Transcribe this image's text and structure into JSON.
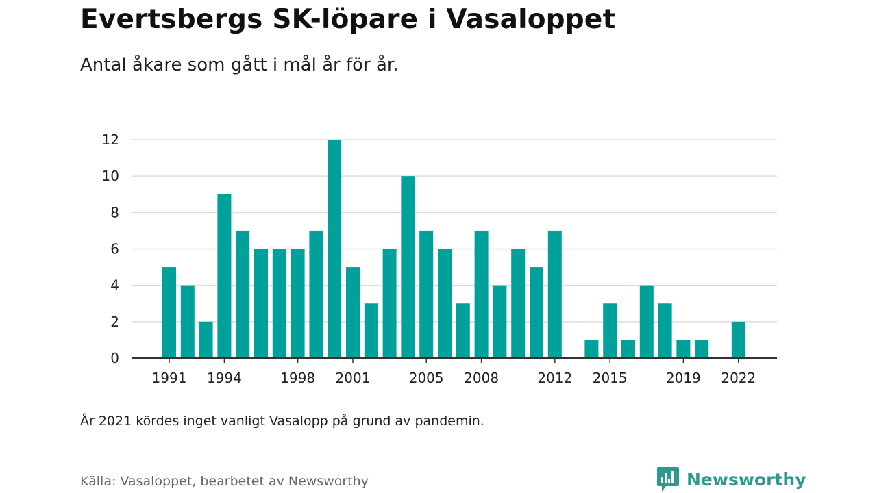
{
  "title": "Evertsbergs SK-löpare i Vasaloppet",
  "subtitle": "Antal åkare som gått i mål år för år.",
  "note": "År 2021 kördes inget vanligt Vasalopp på grund av pandemin.",
  "source": "Källa: Vasaloppet, bearbetet av Newsworthy",
  "brand": {
    "name": "Newsworthy",
    "icon": "newsworthy-logo-icon",
    "color": "#2e9a8e"
  },
  "chart_data": {
    "type": "bar",
    "bar_color": "#00a19a",
    "grid": true,
    "ylim": [
      0,
      12
    ],
    "yticks": [
      "0",
      "2",
      "4",
      "6",
      "8",
      "10",
      "12"
    ],
    "xticks": [
      "1991",
      "1994",
      "1998",
      "2001",
      "2005",
      "2008",
      "2012",
      "2015",
      "2019",
      "2022"
    ],
    "x": [
      1991,
      1992,
      1993,
      1994,
      1995,
      1996,
      1997,
      1998,
      1999,
      2000,
      2001,
      2002,
      2003,
      2004,
      2005,
      2006,
      2007,
      2008,
      2009,
      2010,
      2011,
      2012,
      2013,
      2014,
      2015,
      2016,
      2017,
      2018,
      2019,
      2020,
      2021,
      2022
    ],
    "values": [
      5,
      4,
      2,
      9,
      7,
      6,
      6,
      6,
      7,
      12,
      5,
      3,
      6,
      10,
      7,
      6,
      3,
      7,
      4,
      6,
      5,
      7,
      0,
      1,
      3,
      1,
      4,
      3,
      1,
      1,
      0,
      2
    ]
  }
}
